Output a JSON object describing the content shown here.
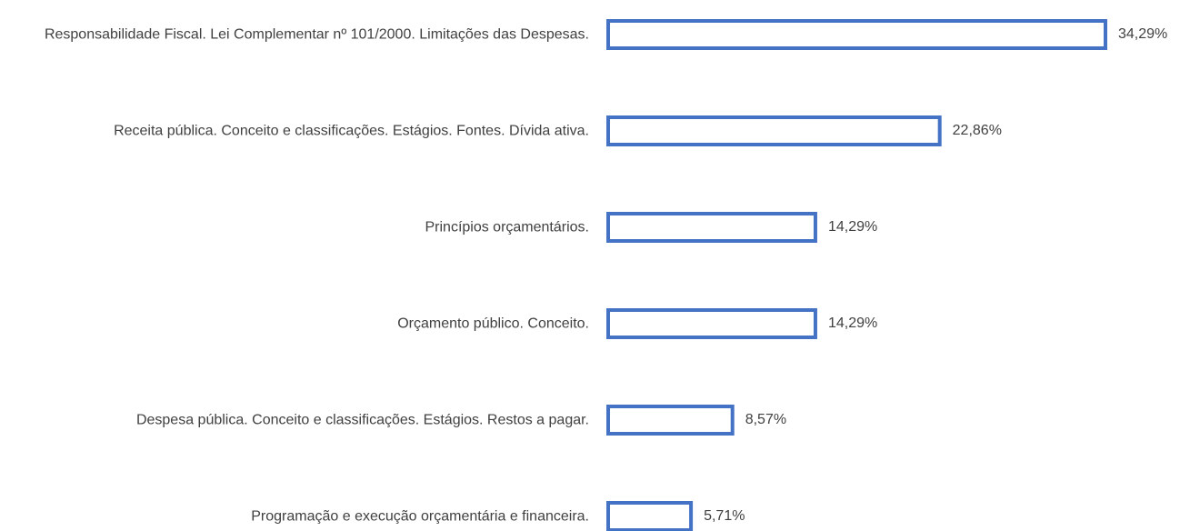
{
  "chart_data": {
    "type": "bar",
    "orientation": "horizontal",
    "color": "#4472c4",
    "categories": [
      "Responsabilidade Fiscal. Lei Complementar nº 101/2000. Limitações das Despesas.",
      "Receita pública. Conceito e classificações. Estágios. Fontes. Dívida ativa.",
      "Princípios orçamentários.",
      "Orçamento público. Conceito.",
      "Despesa pública. Conceito e classificações. Estágios. Restos a pagar.",
      "Programação e execução orçamentária e financeira."
    ],
    "values": [
      34.29,
      22.86,
      14.29,
      14.29,
      8.57,
      5.71
    ],
    "value_labels": [
      "34,29%",
      "22,86%",
      "14,29%",
      "14,29%",
      "8,57%",
      "5,71%"
    ]
  }
}
